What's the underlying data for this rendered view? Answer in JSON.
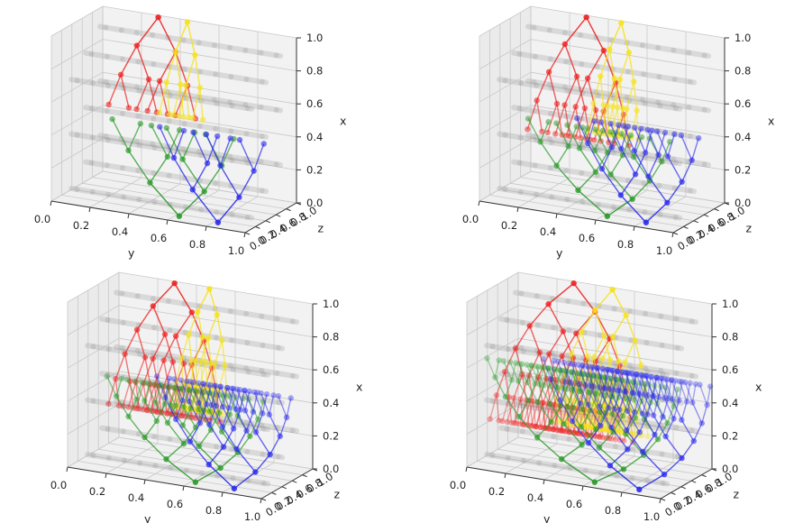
{
  "figure": {
    "background": "#ffffff",
    "pane_color": "#f2f2f2",
    "grid_color": "#c8c8c8"
  },
  "chart_data": [
    {
      "type": "scatter3d",
      "panel": "top-left",
      "xlabel": "y",
      "ylabel": "z",
      "zlabel": "x",
      "xticks": [
        "0.0",
        "0.2",
        "0.4",
        "0.6",
        "0.8",
        "1.0"
      ],
      "yticks": [
        "0.0",
        "0.2",
        "0.4",
        "0.6",
        "0.8",
        "1.0"
      ],
      "zticks": [
        "0.0",
        "0.2",
        "0.4",
        "0.6",
        "0.8",
        "1.0"
      ],
      "xlim": [
        0,
        1
      ],
      "ylim": [
        0,
        1
      ],
      "zlim": [
        0,
        1
      ],
      "grid": true,
      "series": [
        {
          "name": "red tree",
          "color": "#ee2020",
          "depth": 3,
          "fan": 0.1,
          "root": {
            "y": 0.3,
            "z": 0.95,
            "x": 1.0
          },
          "end_x": 0.45
        },
        {
          "name": "yellow tree",
          "color": "#f5e21a",
          "depth": 3,
          "fan": 0.05,
          "root": {
            "y": 0.45,
            "z": 0.95,
            "x": 1.0
          },
          "end_x": 0.45
        },
        {
          "name": "green tree",
          "color": "#2a9a2a",
          "depth": 3,
          "fan": 0.14,
          "root": {
            "y": 0.62,
            "z": 0.15,
            "x": 0.0
          },
          "end_x": 0.55
        },
        {
          "name": "blue tree",
          "color": "#2a2aee",
          "depth": 3,
          "fan": 0.12,
          "root": {
            "y": 0.82,
            "z": 0.15,
            "x": 0.0
          },
          "end_x": 0.55
        }
      ]
    },
    {
      "type": "scatter3d",
      "panel": "top-right",
      "xlabel": "y",
      "ylabel": "z",
      "zlabel": "x",
      "xticks": [
        "0.0",
        "0.2",
        "0.4",
        "0.6",
        "0.8",
        "1.0"
      ],
      "yticks": [
        "0.0",
        "0.2",
        "0.4",
        "0.6",
        "0.8",
        "1.0"
      ],
      "zticks": [
        "0.0",
        "0.2",
        "0.4",
        "0.6",
        "0.8",
        "1.0"
      ],
      "xlim": [
        0,
        1
      ],
      "ylim": [
        0,
        1
      ],
      "zlim": [
        0,
        1
      ],
      "grid": true,
      "series": [
        {
          "name": "red tree",
          "color": "#ee2020",
          "depth": 4,
          "fan": 0.1,
          "root": {
            "y": 0.3,
            "z": 0.95,
            "x": 1.0
          },
          "end_x": 0.3
        },
        {
          "name": "yellow tree",
          "color": "#f5e21a",
          "depth": 4,
          "fan": 0.05,
          "root": {
            "y": 0.48,
            "z": 0.95,
            "x": 1.0
          },
          "end_x": 0.35
        },
        {
          "name": "green tree",
          "color": "#2a9a2a",
          "depth": 4,
          "fan": 0.14,
          "root": {
            "y": 0.62,
            "z": 0.15,
            "x": 0.0
          },
          "end_x": 0.55
        },
        {
          "name": "blue tree",
          "color": "#2a2aee",
          "depth": 4,
          "fan": 0.12,
          "root": {
            "y": 0.82,
            "z": 0.15,
            "x": 0.0
          },
          "end_x": 0.6
        }
      ]
    },
    {
      "type": "scatter3d",
      "panel": "bottom-left",
      "xlabel": "y",
      "ylabel": "z",
      "zlabel": "x",
      "xticks": [
        "0.0",
        "0.2",
        "0.4",
        "0.6",
        "0.8",
        "1.0"
      ],
      "yticks": [
        "0.0",
        "0.2",
        "0.4",
        "0.6",
        "0.8",
        "1.0"
      ],
      "zticks": [
        "0.0",
        "0.2",
        "0.4",
        "0.6",
        "0.8",
        "1.0"
      ],
      "xlim": [
        0,
        1
      ],
      "ylim": [
        0,
        1
      ],
      "zlim": [
        0,
        1
      ],
      "grid": true,
      "series": [
        {
          "name": "red tree",
          "color": "#ee2020",
          "depth": 5,
          "fan": 0.1,
          "root": {
            "y": 0.3,
            "z": 0.95,
            "x": 1.0
          },
          "end_x": 0.25
        },
        {
          "name": "yellow tree",
          "color": "#f5e21a",
          "depth": 5,
          "fan": 0.05,
          "root": {
            "y": 0.48,
            "z": 0.95,
            "x": 1.0
          },
          "end_x": 0.3
        },
        {
          "name": "green tree",
          "color": "#2a9a2a",
          "depth": 5,
          "fan": 0.14,
          "root": {
            "y": 0.62,
            "z": 0.15,
            "x": 0.0
          },
          "end_x": 0.6
        },
        {
          "name": "blue tree",
          "color": "#2a2aee",
          "depth": 5,
          "fan": 0.12,
          "root": {
            "y": 0.82,
            "z": 0.15,
            "x": 0.0
          },
          "end_x": 0.65
        }
      ]
    },
    {
      "type": "scatter3d",
      "panel": "bottom-right",
      "xlabel": "y",
      "ylabel": "z",
      "zlabel": "x",
      "xticks": [
        "0.0",
        "0.2",
        "0.4",
        "0.6",
        "0.8",
        "1.0"
      ],
      "yticks": [
        "0.0",
        "0.2",
        "0.4",
        "0.6",
        "0.8",
        "1.0"
      ],
      "zticks": [
        "0.0",
        "0.2",
        "0.4",
        "0.6",
        "0.8",
        "1.0"
      ],
      "xlim": [
        0,
        1
      ],
      "ylim": [
        0,
        1
      ],
      "zlim": [
        0,
        1
      ],
      "grid": true,
      "series": [
        {
          "name": "red tree",
          "color": "#ee2020",
          "depth": 6,
          "fan": 0.12,
          "root": {
            "y": 0.3,
            "z": 0.95,
            "x": 1.0
          },
          "end_x": 0.15
        },
        {
          "name": "yellow tree",
          "color": "#f5e21a",
          "depth": 6,
          "fan": 0.08,
          "root": {
            "y": 0.5,
            "z": 0.95,
            "x": 1.0
          },
          "end_x": 0.2
        },
        {
          "name": "green tree",
          "color": "#2a9a2a",
          "depth": 6,
          "fan": 0.16,
          "root": {
            "y": 0.62,
            "z": 0.15,
            "x": 0.0
          },
          "end_x": 0.7
        },
        {
          "name": "blue tree",
          "color": "#2a2aee",
          "depth": 6,
          "fan": 0.14,
          "root": {
            "y": 0.85,
            "z": 0.15,
            "x": 0.0
          },
          "end_x": 0.75
        }
      ]
    }
  ]
}
